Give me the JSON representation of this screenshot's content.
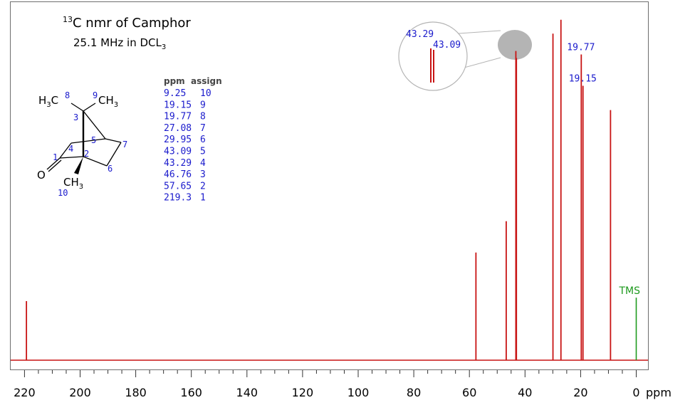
{
  "chart_data": {
    "type": "line",
    "title_sup": "13",
    "title_main": "C nmr of Camphor",
    "subtitle_main": "25.1 MHz in DCL",
    "subtitle_sub": "3",
    "x_unit": "ppm",
    "xlim": [
      220,
      0
    ],
    "x_ticks": [
      {
        "value": 220,
        "label": "220"
      },
      {
        "value": 200,
        "label": "200"
      },
      {
        "value": 180,
        "label": "180"
      },
      {
        "value": 160,
        "label": "160"
      },
      {
        "value": 140,
        "label": "140"
      },
      {
        "value": 120,
        "label": "120"
      },
      {
        "value": 100,
        "label": "100"
      },
      {
        "value": 80,
        "label": "80"
      },
      {
        "value": 60,
        "label": "60"
      },
      {
        "value": 40,
        "label": "40"
      },
      {
        "value": 20,
        "label": "20"
      },
      {
        "value": 0,
        "label": "0"
      }
    ],
    "peaks": [
      {
        "ppm": 219.3,
        "intensity": 0.17
      },
      {
        "ppm": 57.65,
        "intensity": 0.31
      },
      {
        "ppm": 46.76,
        "intensity": 0.4
      },
      {
        "ppm": 43.29,
        "intensity": 0.89
      },
      {
        "ppm": 43.09,
        "intensity": 0.87
      },
      {
        "ppm": 29.95,
        "intensity": 0.94
      },
      {
        "ppm": 27.08,
        "intensity": 0.98
      },
      {
        "ppm": 19.77,
        "intensity": 0.88
      },
      {
        "ppm": 19.15,
        "intensity": 0.79
      },
      {
        "ppm": 9.25,
        "intensity": 0.72
      }
    ],
    "tms": {
      "ppm": 0,
      "intensity": 0.18,
      "label": "TMS"
    },
    "peak_labels": [
      {
        "ppm": 19.77,
        "label": "19.77"
      },
      {
        "ppm": 19.15,
        "label": "19.15"
      }
    ],
    "inset": {
      "label_left": "43.29",
      "label_right": "43.09"
    },
    "assignment_table": {
      "headers": [
        "ppm",
        "assign"
      ],
      "rows": [
        [
          "9.25",
          "10"
        ],
        [
          "19.15",
          "9"
        ],
        [
          "19.77",
          "8"
        ],
        [
          "27.08",
          "7"
        ],
        [
          "29.95",
          "6"
        ],
        [
          "43.09",
          "5"
        ],
        [
          "43.29",
          "4"
        ],
        [
          "46.76",
          "3"
        ],
        [
          "57.65",
          "2"
        ],
        [
          "219.3",
          "1"
        ]
      ]
    },
    "molecule": {
      "h3c_left": "H",
      "h3c_sub": "3",
      "h3c_c": "C",
      "num8": "8",
      "num9": "9",
      "ch3_right": "CH",
      "ch3_right_sub": "3",
      "o": "O",
      "ch3_bottom": "CH",
      "ch3_bottom_sub": "3",
      "num10": "10",
      "num1": "1",
      "num2": "2",
      "num3": "3",
      "num4": "4",
      "num5": "5",
      "num6": "6",
      "num7": "7"
    },
    "colors": {
      "peaks": "#c81414",
      "tms": "#1e9a1e",
      "labels": "#1a1acc",
      "baseline": "#c81414",
      "inset": "#b4b4b4"
    }
  }
}
